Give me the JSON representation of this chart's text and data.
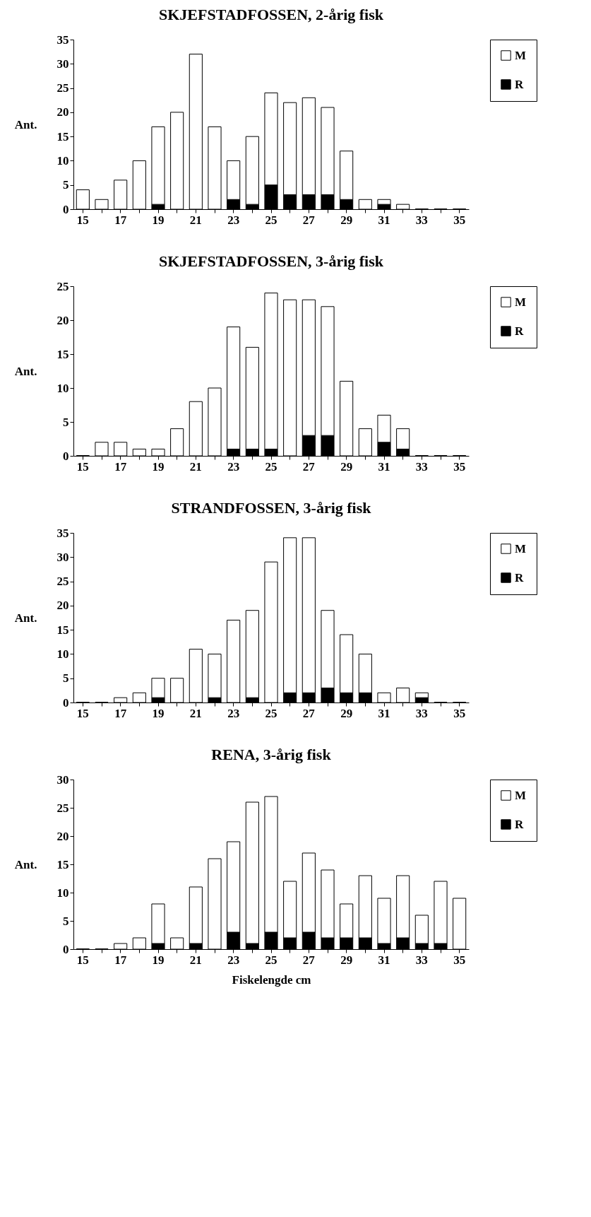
{
  "chart_data": [
    {
      "type": "bar",
      "title": "SKJEFSTADFOSSEN, 2-årig fisk",
      "ylabel": "Ant.",
      "stacked": true,
      "legend": "right",
      "categories": [
        "15",
        null,
        "17",
        null,
        "19",
        null,
        "21",
        null,
        "23",
        null,
        "25",
        null,
        "27",
        null,
        "29",
        null,
        "31",
        null,
        "33",
        null,
        "35"
      ],
      "ylim": [
        0,
        35
      ],
      "yticks": [
        0,
        5,
        10,
        15,
        20,
        25,
        30,
        35
      ],
      "series": [
        {
          "name": "R",
          "color": "#000000",
          "values": [
            0,
            0,
            0,
            0,
            1,
            0,
            0,
            0,
            2,
            1,
            5,
            3,
            3,
            3,
            2,
            0,
            1,
            0,
            0,
            0,
            0
          ]
        },
        {
          "name": "M",
          "color": "#ffffff",
          "values": [
            4,
            2,
            6,
            10,
            16,
            20,
            32,
            17,
            8,
            14,
            19,
            19,
            20,
            18,
            10,
            2,
            1,
            1,
            0,
            0,
            0
          ]
        }
      ]
    },
    {
      "type": "bar",
      "title": "SKJEFSTADFOSSEN, 3-årig fisk",
      "ylabel": "Ant.",
      "stacked": true,
      "legend": "right",
      "categories": [
        "15",
        null,
        "17",
        null,
        "19",
        null,
        "21",
        null,
        "23",
        null,
        "25",
        null,
        "27",
        null,
        "29",
        null,
        "31",
        null,
        "33",
        null,
        "35"
      ],
      "ylim": [
        0,
        25
      ],
      "yticks": [
        0,
        5,
        10,
        15,
        20,
        25
      ],
      "series": [
        {
          "name": "R",
          "color": "#000000",
          "values": [
            0,
            0,
            0,
            0,
            0,
            0,
            0,
            0,
            1,
            1,
            1,
            0,
            3,
            3,
            0,
            0,
            2,
            1,
            0,
            0,
            0
          ]
        },
        {
          "name": "M",
          "color": "#ffffff",
          "values": [
            0,
            2,
            2,
            1,
            1,
            4,
            8,
            10,
            18,
            15,
            23,
            23,
            20,
            19,
            11,
            4,
            4,
            3,
            0,
            0,
            0
          ]
        }
      ]
    },
    {
      "type": "bar",
      "title": "STRANDFOSSEN, 3-årig fisk",
      "ylabel": "Ant.",
      "stacked": true,
      "legend": "right",
      "categories": [
        "15",
        null,
        "17",
        null,
        "19",
        null,
        "21",
        null,
        "23",
        null,
        "25",
        null,
        "27",
        null,
        "29",
        null,
        "31",
        null,
        "33",
        null,
        "35"
      ],
      "ylim": [
        0,
        35
      ],
      "yticks": [
        0,
        5,
        10,
        15,
        20,
        25,
        30,
        35
      ],
      "series": [
        {
          "name": "R",
          "color": "#000000",
          "values": [
            0,
            0,
            0,
            0,
            1,
            0,
            0,
            1,
            0,
            1,
            0,
            2,
            2,
            3,
            2,
            2,
            0,
            0,
            1,
            0,
            0
          ]
        },
        {
          "name": "M",
          "color": "#ffffff",
          "values": [
            0,
            0,
            1,
            2,
            4,
            5,
            11,
            9,
            17,
            18,
            29,
            32,
            32,
            16,
            12,
            8,
            2,
            3,
            1,
            0,
            0
          ]
        }
      ]
    },
    {
      "type": "bar",
      "title": "RENA, 3-årig fisk",
      "ylabel": "Ant.",
      "xlabel": "Fiskelengde cm",
      "stacked": true,
      "legend": "right",
      "categories": [
        "15",
        null,
        "17",
        null,
        "19",
        null,
        "21",
        null,
        "23",
        null,
        "25",
        null,
        "27",
        null,
        "29",
        null,
        "31",
        null,
        "33",
        null,
        "35"
      ],
      "ylim": [
        0,
        30
      ],
      "yticks": [
        0,
        5,
        10,
        15,
        20,
        25,
        30
      ],
      "series": [
        {
          "name": "R",
          "color": "#000000",
          "values": [
            0,
            0,
            0,
            0,
            1,
            0,
            1,
            0,
            3,
            1,
            3,
            2,
            3,
            2,
            2,
            2,
            1,
            2,
            1,
            1,
            0
          ]
        },
        {
          "name": "M",
          "color": "#ffffff",
          "values": [
            0,
            0,
            1,
            2,
            7,
            2,
            10,
            16,
            16,
            25,
            24,
            10,
            14,
            12,
            6,
            11,
            8,
            11,
            5,
            11,
            9
          ]
        }
      ]
    }
  ]
}
